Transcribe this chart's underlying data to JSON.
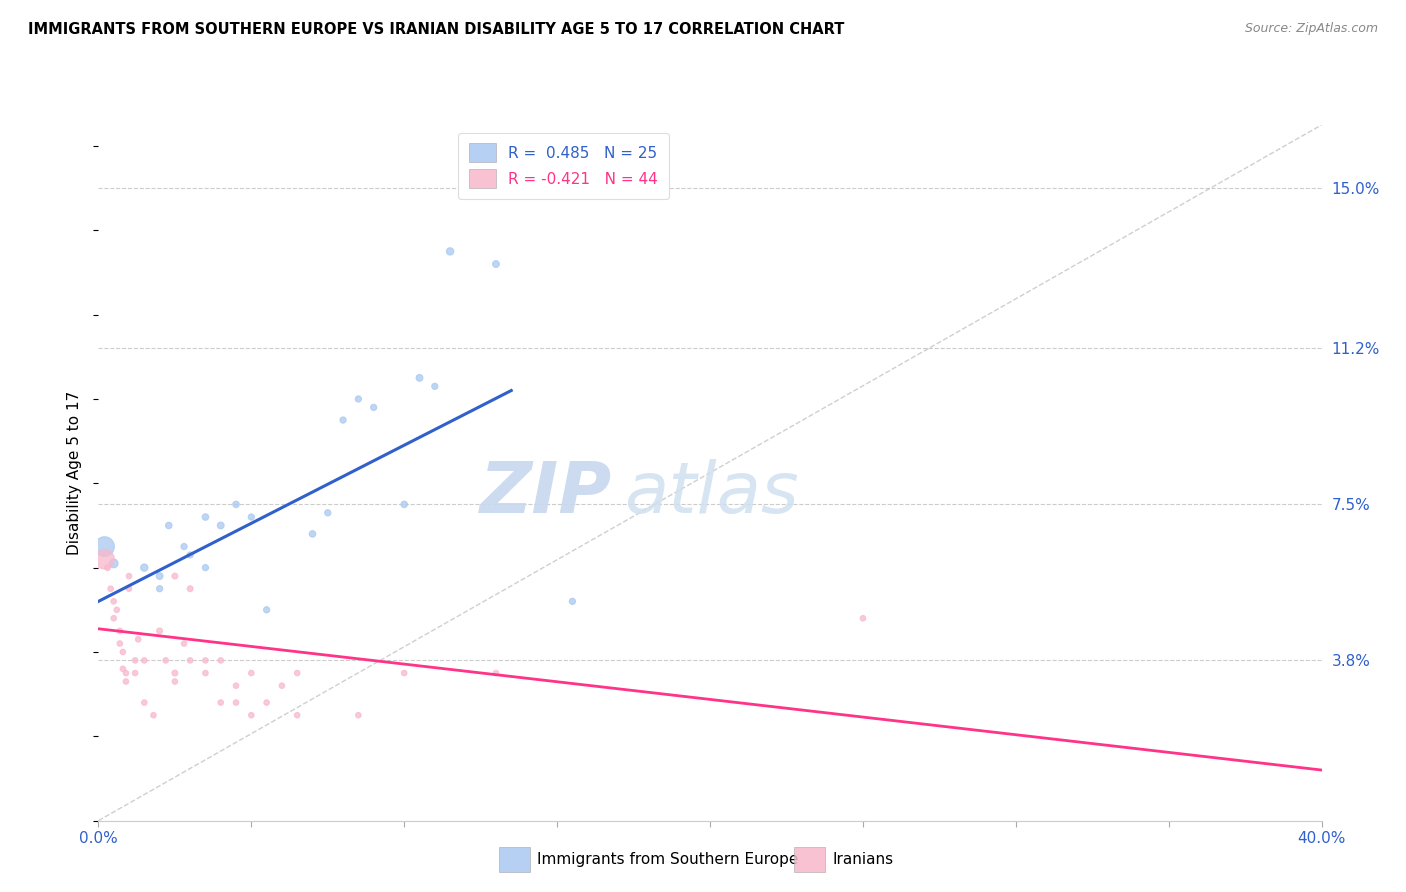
{
  "title": "IMMIGRANTS FROM SOUTHERN EUROPE VS IRANIAN DISABILITY AGE 5 TO 17 CORRELATION CHART",
  "source": "Source: ZipAtlas.com",
  "ylabel": "Disability Age 5 to 17",
  "r_blue": 0.485,
  "n_blue": 25,
  "r_pink": -0.421,
  "n_pink": 44,
  "blue_color": "#A8C8F0",
  "pink_color": "#F8B8CC",
  "blue_line_color": "#3060CC",
  "pink_line_color": "#FF3388",
  "dashed_line_color": "#BBBBBB",
  "watermark_zip": "ZIP",
  "watermark_atlas": "atlas",
  "ytick_vals": [
    0.0,
    3.8,
    7.5,
    11.2,
    15.0
  ],
  "ytick_labels": [
    "",
    "3.8%",
    "7.5%",
    "11.2%",
    "15.0%"
  ],
  "xtick_vals": [
    0,
    5,
    10,
    15,
    20,
    25,
    30,
    35,
    40
  ],
  "xtick_labels": [
    "0.0%",
    "",
    "",
    "",
    "",
    "",
    "",
    "",
    "40.0%"
  ],
  "xmin": 0.0,
  "xmax": 40.0,
  "ymin": 0.0,
  "ymax": 16.5,
  "blue_line_x": [
    0.0,
    13.5
  ],
  "blue_line_y": [
    5.2,
    10.2
  ],
  "pink_line_x": [
    0.0,
    40.0
  ],
  "pink_line_y": [
    4.55,
    1.2
  ],
  "ref_line_x": [
    0.0,
    40.0
  ],
  "ref_line_y": [
    0.0,
    16.5
  ],
  "blue_points": [
    [
      0.2,
      6.5,
      200
    ],
    [
      0.5,
      6.1,
      40
    ],
    [
      1.5,
      6.0,
      28
    ],
    [
      2.0,
      5.8,
      24
    ],
    [
      2.0,
      5.5,
      20
    ],
    [
      2.3,
      7.0,
      22
    ],
    [
      2.8,
      6.5,
      20
    ],
    [
      3.0,
      6.3,
      20
    ],
    [
      3.5,
      7.2,
      22
    ],
    [
      3.5,
      6.0,
      20
    ],
    [
      4.0,
      7.0,
      24
    ],
    [
      4.5,
      7.5,
      22
    ],
    [
      5.0,
      7.2,
      20
    ],
    [
      5.5,
      5.0,
      20
    ],
    [
      7.0,
      6.8,
      22
    ],
    [
      7.5,
      7.3,
      20
    ],
    [
      8.0,
      9.5,
      20
    ],
    [
      8.5,
      10.0,
      20
    ],
    [
      9.0,
      9.8,
      20
    ],
    [
      10.0,
      7.5,
      22
    ],
    [
      10.5,
      10.5,
      24
    ],
    [
      11.0,
      10.3,
      20
    ],
    [
      11.5,
      13.5,
      28
    ],
    [
      13.0,
      13.2,
      24
    ],
    [
      15.5,
      5.2,
      20
    ]
  ],
  "pink_points": [
    [
      0.2,
      6.2,
      200
    ],
    [
      0.3,
      6.0,
      18
    ],
    [
      0.4,
      5.5,
      16
    ],
    [
      0.5,
      5.2,
      16
    ],
    [
      0.5,
      4.8,
      16
    ],
    [
      0.6,
      5.0,
      16
    ],
    [
      0.7,
      4.5,
      16
    ],
    [
      0.7,
      4.2,
      16
    ],
    [
      0.8,
      4.0,
      16
    ],
    [
      0.8,
      3.6,
      16
    ],
    [
      0.9,
      3.5,
      16
    ],
    [
      0.9,
      3.3,
      16
    ],
    [
      1.0,
      5.8,
      16
    ],
    [
      1.0,
      5.5,
      16
    ],
    [
      1.2,
      3.8,
      16
    ],
    [
      1.2,
      3.5,
      16
    ],
    [
      1.3,
      4.3,
      16
    ],
    [
      1.5,
      3.8,
      16
    ],
    [
      1.5,
      2.8,
      16
    ],
    [
      1.8,
      2.5,
      16
    ],
    [
      2.0,
      4.5,
      18
    ],
    [
      2.2,
      3.8,
      16
    ],
    [
      2.5,
      5.8,
      18
    ],
    [
      2.5,
      3.5,
      18
    ],
    [
      2.5,
      3.3,
      16
    ],
    [
      2.8,
      4.2,
      16
    ],
    [
      3.0,
      5.5,
      18
    ],
    [
      3.0,
      3.8,
      16
    ],
    [
      3.5,
      3.8,
      16
    ],
    [
      3.5,
      3.5,
      16
    ],
    [
      4.0,
      3.8,
      16
    ],
    [
      4.0,
      2.8,
      16
    ],
    [
      4.5,
      3.2,
      16
    ],
    [
      4.5,
      2.8,
      16
    ],
    [
      5.0,
      3.5,
      16
    ],
    [
      5.0,
      2.5,
      16
    ],
    [
      5.5,
      2.8,
      16
    ],
    [
      6.0,
      3.2,
      16
    ],
    [
      6.5,
      3.5,
      16
    ],
    [
      6.5,
      2.5,
      16
    ],
    [
      8.5,
      2.5,
      16
    ],
    [
      10.0,
      3.5,
      16
    ],
    [
      13.0,
      3.5,
      16
    ],
    [
      25.0,
      4.8,
      16
    ]
  ]
}
